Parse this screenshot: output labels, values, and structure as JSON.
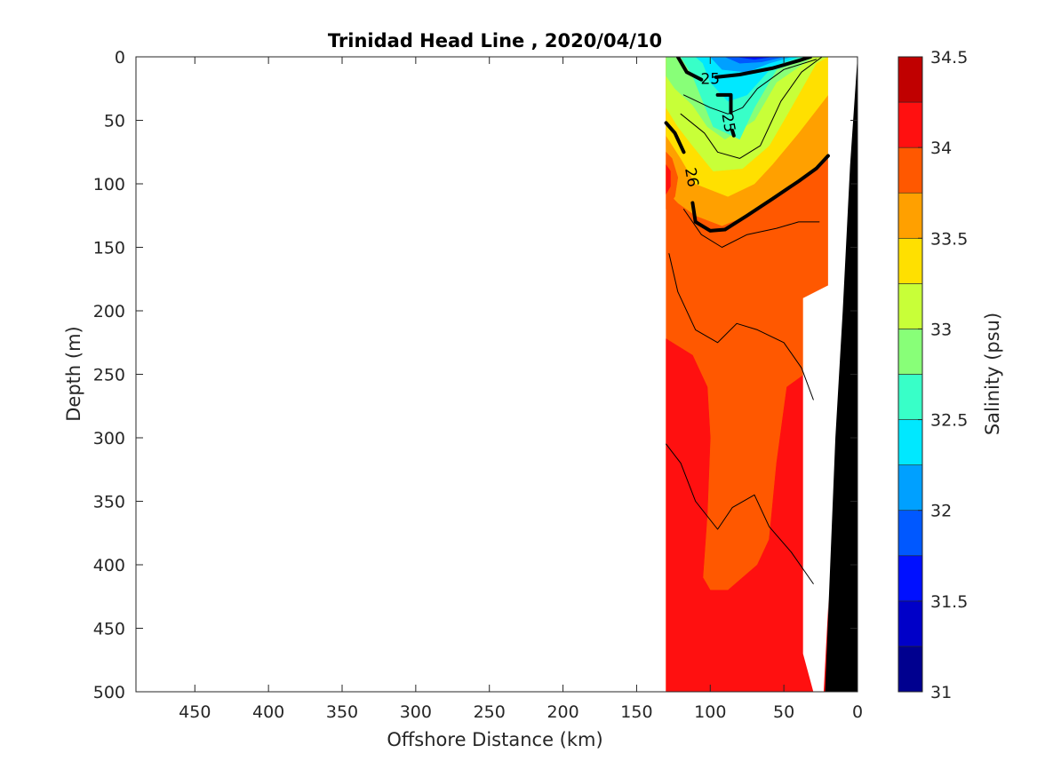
{
  "chart_data": {
    "type": "heatmap",
    "subtype": "filled-contour-section",
    "title": "Trinidad Head Line , 2020/04/10",
    "xlabel": "Offshore Distance (km)",
    "ylabel": "Depth (m)",
    "x_reversed": true,
    "y_reversed": true,
    "xlim": [
      490,
      0
    ],
    "ylim": [
      0,
      500
    ],
    "xticks": [
      450,
      400,
      350,
      300,
      250,
      200,
      150,
      100,
      50,
      0
    ],
    "yticks": [
      0,
      50,
      100,
      150,
      200,
      250,
      300,
      350,
      400,
      450,
      500
    ],
    "grid": false,
    "colorbar": {
      "label": "Salinity (psu)",
      "min": 31,
      "max": 34.5,
      "step": 0.25,
      "ticks": [
        31,
        31.5,
        32,
        32.5,
        33,
        33.5,
        34,
        34.5
      ],
      "colors": [
        "#00008f",
        "#0000c8",
        "#0010ff",
        "#0058ff",
        "#00a0ff",
        "#00e8ff",
        "#38ffc8",
        "#88ff78",
        "#c8ff38",
        "#ffe000",
        "#ffa000",
        "#ff5800",
        "#ff1010",
        "#c00000"
      ]
    },
    "data_extent_km": [
      130,
      20
    ],
    "contour_labels": [
      {
        "text": "25",
        "x": 100,
        "y": 18
      },
      {
        "text": "25",
        "x": 88,
        "y": 52
      },
      {
        "text": "26",
        "x": 113,
        "y": 95
      }
    ],
    "field_levels": [
      {
        "level": 33.875,
        "pts": [
          [
            130,
            0
          ],
          [
            20,
            0
          ],
          [
            20,
            180
          ],
          [
            33,
            190
          ],
          [
            38,
            440
          ],
          [
            30,
            470
          ],
          [
            30,
            500
          ],
          [
            130,
            500
          ]
        ]
      },
      {
        "level": 33.625,
        "pts": [
          [
            130,
            0
          ],
          [
            20,
            0
          ],
          [
            20,
            80
          ],
          [
            35,
            95
          ],
          [
            55,
            110
          ],
          [
            75,
            125
          ],
          [
            92,
            133
          ],
          [
            110,
            125
          ],
          [
            122,
            115
          ],
          [
            130,
            105
          ]
        ]
      },
      {
        "level": 33.375,
        "pts": [
          [
            130,
            0
          ],
          [
            20,
            0
          ],
          [
            20,
            30
          ],
          [
            40,
            60
          ],
          [
            58,
            85
          ],
          [
            70,
            100
          ],
          [
            88,
            110
          ],
          [
            110,
            100
          ],
          [
            120,
            80
          ],
          [
            130,
            62
          ]
        ]
      },
      {
        "level": 33.125,
        "pts": [
          [
            130,
            0
          ],
          [
            20,
            0
          ],
          [
            28,
            5
          ],
          [
            45,
            40
          ],
          [
            60,
            70
          ],
          [
            78,
            88
          ],
          [
            98,
            90
          ],
          [
            112,
            70
          ],
          [
            122,
            55
          ],
          [
            130,
            40
          ]
        ]
      },
      {
        "level": 32.875,
        "pts": [
          [
            130,
            0
          ],
          [
            20,
            0
          ],
          [
            30,
            0
          ],
          [
            55,
            20
          ],
          [
            70,
            50
          ],
          [
            90,
            65
          ],
          [
            102,
            55
          ],
          [
            112,
            38
          ],
          [
            124,
            25
          ],
          [
            130,
            15
          ]
        ]
      },
      {
        "level": 32.625,
        "pts": [
          [
            120,
            0
          ],
          [
            32,
            0
          ],
          [
            55,
            10
          ],
          [
            70,
            40
          ],
          [
            80,
            65
          ],
          [
            98,
            55
          ],
          [
            105,
            35
          ],
          [
            112,
            15
          ]
        ]
      },
      {
        "level": 32.375,
        "pts": [
          [
            110,
            0
          ],
          [
            40,
            0
          ],
          [
            58,
            8
          ],
          [
            75,
            30
          ],
          [
            88,
            35
          ],
          [
            100,
            20
          ],
          [
            105,
            5
          ]
        ]
      },
      {
        "level": 32.125,
        "pts": [
          [
            100,
            0
          ],
          [
            45,
            0
          ],
          [
            60,
            5
          ],
          [
            75,
            12
          ],
          [
            92,
            10
          ]
        ]
      },
      {
        "level": 31.875,
        "pts": [
          [
            90,
            0
          ],
          [
            50,
            0
          ],
          [
            65,
            4
          ],
          [
            80,
            5
          ]
        ]
      },
      {
        "level": 31.625,
        "pts": [
          [
            82,
            0
          ],
          [
            58,
            0
          ],
          [
            70,
            2
          ]
        ]
      },
      {
        "level": 33.875,
        "pts": [
          [
            130,
            75
          ],
          [
            126,
            80
          ],
          [
            122,
            95
          ],
          [
            124,
            110
          ],
          [
            130,
            120
          ]
        ]
      },
      {
        "level": 34.125,
        "pts": [
          [
            130,
            85
          ],
          [
            127,
            90
          ],
          [
            127,
            102
          ],
          [
            130,
            108
          ]
        ]
      },
      {
        "level": 34.125,
        "pts": [
          [
            130,
            222
          ],
          [
            112,
            235
          ],
          [
            102,
            260
          ],
          [
            100,
            300
          ],
          [
            102,
            360
          ],
          [
            105,
            410
          ],
          [
            100,
            420
          ],
          [
            88,
            420
          ],
          [
            68,
            400
          ],
          [
            60,
            380
          ],
          [
            55,
            320
          ],
          [
            48,
            260
          ],
          [
            30,
            245
          ],
          [
            30,
            500
          ],
          [
            38,
            500
          ],
          [
            38,
            440
          ],
          [
            33,
            190
          ],
          [
            20,
            180
          ],
          [
            20,
            500
          ],
          [
            130,
            500
          ]
        ]
      }
    ],
    "contour_lines": [
      {
        "bold": false,
        "pts": [
          [
            130,
            305
          ],
          [
            120,
            320
          ],
          [
            110,
            350
          ],
          [
            95,
            372
          ],
          [
            85,
            355
          ],
          [
            70,
            345
          ],
          [
            60,
            370
          ],
          [
            45,
            390
          ],
          [
            30,
            415
          ]
        ]
      },
      {
        "bold": false,
        "pts": [
          [
            128,
            155
          ],
          [
            122,
            185
          ],
          [
            110,
            215
          ],
          [
            95,
            225
          ],
          [
            82,
            210
          ],
          [
            68,
            215
          ],
          [
            50,
            225
          ],
          [
            38,
            245
          ],
          [
            30,
            270
          ]
        ]
      },
      {
        "bold": false,
        "pts": [
          [
            120,
            45
          ],
          [
            104,
            60
          ],
          [
            95,
            75
          ],
          [
            80,
            80
          ],
          [
            66,
            70
          ],
          [
            58,
            50
          ],
          [
            52,
            35
          ],
          [
            38,
            12
          ],
          [
            24,
            0
          ]
        ]
      },
      {
        "bold": false,
        "pts": [
          [
            118,
            30
          ],
          [
            100,
            40
          ],
          [
            88,
            45
          ],
          [
            78,
            40
          ],
          [
            68,
            25
          ],
          [
            50,
            10
          ],
          [
            28,
            2
          ]
        ]
      },
      {
        "bold": false,
        "pts": [
          [
            118,
            120
          ],
          [
            106,
            140
          ],
          [
            92,
            150
          ],
          [
            75,
            140
          ],
          [
            55,
            135
          ],
          [
            40,
            130
          ],
          [
            26,
            130
          ]
        ]
      },
      {
        "bold": true,
        "pts": [
          [
            122,
            0
          ],
          [
            116,
            12
          ],
          [
            106,
            18
          ]
        ]
      },
      {
        "bold": true,
        "pts": [
          [
            96,
            16
          ],
          [
            80,
            14
          ],
          [
            58,
            9
          ],
          [
            40,
            3
          ],
          [
            32,
            0
          ]
        ]
      },
      {
        "bold": true,
        "pts": [
          [
            95,
            30
          ],
          [
            86,
            30
          ],
          [
            86,
            44
          ]
        ]
      },
      {
        "bold": true,
        "pts": [
          [
            84,
            62
          ],
          [
            85,
            58
          ]
        ]
      },
      {
        "bold": true,
        "pts": [
          [
            130,
            52
          ],
          [
            124,
            60
          ],
          [
            118,
            75
          ]
        ]
      },
      {
        "bold": true,
        "pts": [
          [
            112,
            115
          ],
          [
            110,
            130
          ],
          [
            100,
            137
          ],
          [
            90,
            136
          ],
          [
            75,
            125
          ],
          [
            58,
            112
          ],
          [
            40,
            98
          ],
          [
            28,
            88
          ],
          [
            20,
            78
          ]
        ]
      }
    ],
    "blank_wedge": {
      "pts": [
        [
          30,
          500
        ],
        [
          37,
          470
        ],
        [
          37,
          190
        ],
        [
          20,
          180
        ],
        [
          20,
          0
        ],
        [
          0,
          0
        ],
        [
          23,
          500
        ]
      ]
    },
    "bathymetry": {
      "pts": [
        [
          0,
          0
        ],
        [
          5,
          85
        ],
        [
          10,
          200
        ],
        [
          15,
          300
        ],
        [
          22,
          500
        ],
        [
          0,
          500
        ]
      ]
    }
  }
}
